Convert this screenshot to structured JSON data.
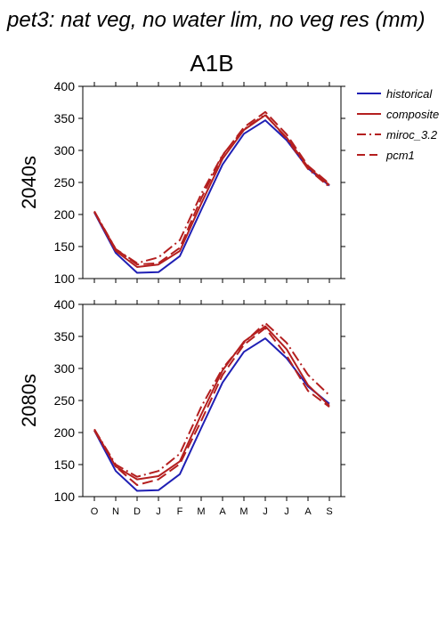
{
  "figure": {
    "title": "pet3: nat veg, no water lim, no veg res (mm)",
    "scenario": "A1B"
  },
  "colors": {
    "historical": "#1f1fb4",
    "scenario": "#b41f1f",
    "axis": "#000000"
  },
  "chart_data": [
    {
      "type": "line",
      "title": "A1B",
      "ylabel": "2040s",
      "x": [
        "O",
        "N",
        "D",
        "J",
        "F",
        "M",
        "A",
        "M",
        "J",
        "J",
        "A",
        "S"
      ],
      "ylim": [
        100,
        400
      ],
      "yticks": [
        100,
        150,
        200,
        250,
        300,
        350,
        400
      ],
      "grid": false,
      "legend_position": "right",
      "series": [
        {
          "name": "historical",
          "style": "solid",
          "values": [
            203,
            140,
            109,
            110,
            135,
            207,
            278,
            326,
            347,
            316,
            272,
            245
          ]
        },
        {
          "name": "composite",
          "style": "solid",
          "values": [
            204,
            143,
            118,
            122,
            143,
            217,
            287,
            332,
            355,
            320,
            274,
            246
          ]
        },
        {
          "name": "miroc_3.2",
          "style": "dashdot",
          "values": [
            205,
            146,
            124,
            133,
            160,
            232,
            293,
            333,
            356,
            318,
            271,
            243
          ]
        },
        {
          "name": "pcm1",
          "style": "dashed",
          "values": [
            204,
            146,
            122,
            124,
            148,
            225,
            292,
            336,
            360,
            325,
            276,
            248
          ]
        }
      ]
    },
    {
      "type": "line",
      "title": "",
      "ylabel": "2080s",
      "x": [
        "O",
        "N",
        "D",
        "J",
        "F",
        "M",
        "A",
        "M",
        "J",
        "J",
        "A",
        "S"
      ],
      "ylim": [
        100,
        400
      ],
      "yticks": [
        100,
        150,
        200,
        250,
        300,
        350,
        400
      ],
      "grid": false,
      "series": [
        {
          "name": "historical",
          "style": "solid",
          "values": [
            203,
            140,
            109,
            110,
            135,
            207,
            278,
            326,
            347,
            316,
            272,
            245
          ]
        },
        {
          "name": "composite",
          "style": "solid",
          "values": [
            205,
            147,
            127,
            132,
            155,
            228,
            297,
            342,
            366,
            330,
            274,
            242
          ]
        },
        {
          "name": "miroc_3.2",
          "style": "dashdot",
          "values": [
            205,
            150,
            131,
            140,
            167,
            240,
            300,
            340,
            371,
            340,
            290,
            258
          ]
        },
        {
          "name": "pcm1",
          "style": "dashed",
          "values": [
            203,
            147,
            118,
            127,
            151,
            218,
            290,
            337,
            363,
            320,
            265,
            240
          ]
        }
      ]
    }
  ]
}
